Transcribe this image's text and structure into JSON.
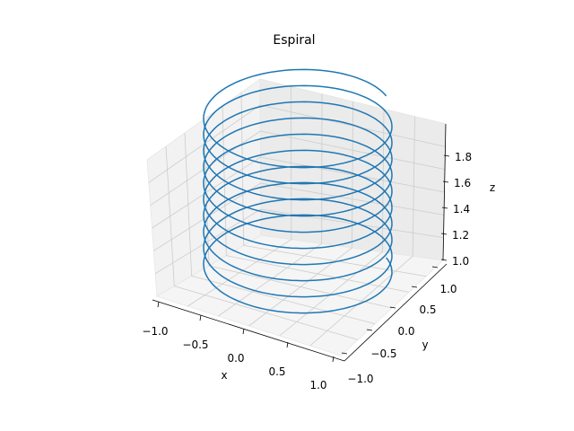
{
  "chart_data": {
    "type": "line",
    "projection": "3d",
    "title": "Espiral",
    "xlabel": "x",
    "ylabel": "y",
    "zlabel": "z",
    "xlim": [
      -1.1,
      1.1
    ],
    "ylim": [
      -1.1,
      1.1
    ],
    "zlim": [
      0.95,
      1.95
    ],
    "xticks": [
      "−1.0",
      "−0.5",
      "0.0",
      "0.5",
      "1.0"
    ],
    "yticks": [
      "−1.0",
      "−0.5",
      "0.0",
      "0.5",
      "1.0"
    ],
    "zticks": [
      "1.0",
      "1.2",
      "1.4",
      "1.6",
      "1.8"
    ],
    "grid": true,
    "series": [
      {
        "color": "#1f77b4",
        "equation": "x = cos(t), y = sin(t), z = 1 + t/(20π)",
        "t_range": [
          0,
          "20π"
        ],
        "z_range": [
          1.0,
          2.0
        ],
        "turns": 10
      }
    ]
  }
}
